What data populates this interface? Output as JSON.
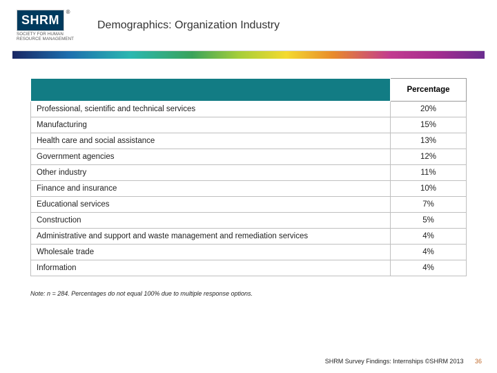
{
  "header": {
    "logo_text": "SHRM",
    "logo_tagline": "SOCIETY FOR HUMAN RESOURCE MANAGEMENT",
    "title": "Demographics: Organization Industry"
  },
  "gradient": {
    "colors": [
      "#1a2763",
      "#1d6fae",
      "#2bb7b0",
      "#3aa35b",
      "#a6ce39",
      "#f4da2f",
      "#e88a2c",
      "#c23b8f",
      "#a42d8f",
      "#6a2d8f"
    ]
  },
  "table": {
    "header_bg": "#127c84",
    "border_color": "#bfbfbf",
    "columns": [
      "",
      "Percentage"
    ],
    "rows": [
      [
        "Professional, scientific and technical services",
        "20%"
      ],
      [
        "Manufacturing",
        "15%"
      ],
      [
        "Health care and social assistance",
        "13%"
      ],
      [
        "Government agencies",
        "12%"
      ],
      [
        "Other industry",
        "11%"
      ],
      [
        "Finance and insurance",
        "10%"
      ],
      [
        "Educational services",
        "7%"
      ],
      [
        "Construction",
        "5%"
      ],
      [
        "Administrative and support and waste management and remediation services",
        "4%"
      ],
      [
        "Wholesale trade",
        "4%"
      ],
      [
        "Information",
        "4%"
      ]
    ]
  },
  "note": "Note: n = 284. Percentages do not equal 100% due to multiple response options.",
  "footer": {
    "source": "SHRM Survey Findings: Internships ©SHRM 2013",
    "page": "36"
  }
}
